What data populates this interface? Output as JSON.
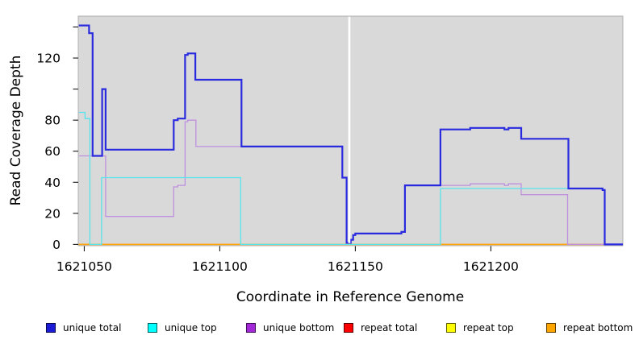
{
  "chart_data": {
    "type": "line",
    "step": true,
    "title": "",
    "xlabel": "Coordinate in Reference Genome",
    "ylabel": "Read Coverage Depth",
    "xlim": [
      1621047.8,
      1621248.7
    ],
    "ylim": [
      -0.85,
      147
    ],
    "x_ticks": [
      1621050,
      1621100,
      1621150,
      1621200
    ],
    "x_tick_labels": [
      "1621050",
      "1621100",
      "1621150",
      "1621200"
    ],
    "y_ticks": [
      0,
      20,
      40,
      60,
      80,
      100,
      120,
      140
    ],
    "y_tick_labels": [
      "0",
      "20",
      "40",
      "60",
      "80",
      "",
      "120",
      ""
    ],
    "panel_bg": "#D9D9D9",
    "panel_border": "#B0B0B0",
    "gap_mask": {
      "x0": 1621147.4,
      "x1": 1621148.2
    },
    "legend_position": "bottom",
    "draw_order": [
      3,
      4,
      5,
      2,
      1,
      0
    ],
    "series": [
      {
        "id": "unique-total",
        "label": "unique total",
        "swatch": "#1C1CD6",
        "stroke": "#2A2ADF",
        "stroke_width": 2.2,
        "points": [
          [
            1621048,
            141
          ],
          [
            1621051.8,
            136
          ],
          [
            1621053.1,
            57
          ],
          [
            1621056.6,
            100
          ],
          [
            1621057.9,
            61
          ],
          [
            1621083.0,
            80
          ],
          [
            1621084.5,
            81
          ],
          [
            1621087.2,
            122
          ],
          [
            1621088.2,
            123
          ],
          [
            1621091.0,
            106
          ],
          [
            1621108.0,
            63
          ],
          [
            1621145.2,
            43
          ],
          [
            1621146.8,
            1
          ],
          [
            1621148.3,
            3
          ],
          [
            1621149.2,
            6
          ],
          [
            1621150.0,
            7
          ],
          [
            1621167.0,
            8
          ],
          [
            1621168.3,
            38
          ],
          [
            1621181.4,
            74
          ],
          [
            1621192.4,
            75
          ],
          [
            1621205.0,
            74
          ],
          [
            1621206.5,
            75
          ],
          [
            1621211.2,
            68
          ],
          [
            1621228.6,
            36
          ],
          [
            1621241.2,
            35
          ],
          [
            1621242.0,
            0
          ],
          [
            1621248.7,
            0
          ]
        ]
      },
      {
        "id": "unique-top",
        "label": "unique top",
        "swatch": "#00FFFF",
        "stroke": "#58E4EC",
        "stroke_width": 1.3,
        "points": [
          [
            1621048,
            85
          ],
          [
            1621050.3,
            81
          ],
          [
            1621052.1,
            0
          ],
          [
            1621056.4,
            43
          ],
          [
            1621107.7,
            0
          ],
          [
            1621181.4,
            36
          ],
          [
            1621241.2,
            35
          ],
          [
            1621242.0,
            0
          ],
          [
            1621248.7,
            0
          ]
        ]
      },
      {
        "id": "unique-bottom",
        "label": "unique bottom",
        "swatch": "#A228D8",
        "stroke": "#BE90DF",
        "stroke_width": 1.3,
        "points": [
          [
            1621048,
            57
          ],
          [
            1621057.9,
            18
          ],
          [
            1621083.0,
            37
          ],
          [
            1621084.5,
            38
          ],
          [
            1621087.2,
            79
          ],
          [
            1621088.2,
            80
          ],
          [
            1621091.2,
            63
          ],
          [
            1621145.2,
            43
          ],
          [
            1621146.8,
            1
          ],
          [
            1621148.3,
            3
          ],
          [
            1621149.2,
            6
          ],
          [
            1621150.0,
            7
          ],
          [
            1621167.0,
            8
          ],
          [
            1621168.3,
            38
          ],
          [
            1621192.4,
            39
          ],
          [
            1621205.0,
            38
          ],
          [
            1621206.5,
            39
          ],
          [
            1621211.2,
            32
          ],
          [
            1621228.3,
            0
          ],
          [
            1621248.7,
            0
          ]
        ]
      },
      {
        "id": "repeat-total",
        "label": "repeat total",
        "swatch": "#FF0000",
        "stroke": "#DD2222",
        "stroke_width": 1.3,
        "points": [
          [
            1621048,
            0
          ],
          [
            1621248.7,
            0
          ]
        ]
      },
      {
        "id": "repeat-top",
        "label": "repeat top",
        "swatch": "#FFFF00",
        "stroke": "#E8E833",
        "stroke_width": 1.3,
        "points": [
          [
            1621048,
            0
          ],
          [
            1621248.7,
            0
          ]
        ]
      },
      {
        "id": "repeat-bottom",
        "label": "repeat bottom",
        "swatch": "#FFA500",
        "stroke": "#FFA510",
        "stroke_width": 1.6,
        "points": [
          [
            1621048,
            0
          ],
          [
            1621248.7,
            0
          ]
        ]
      }
    ]
  }
}
